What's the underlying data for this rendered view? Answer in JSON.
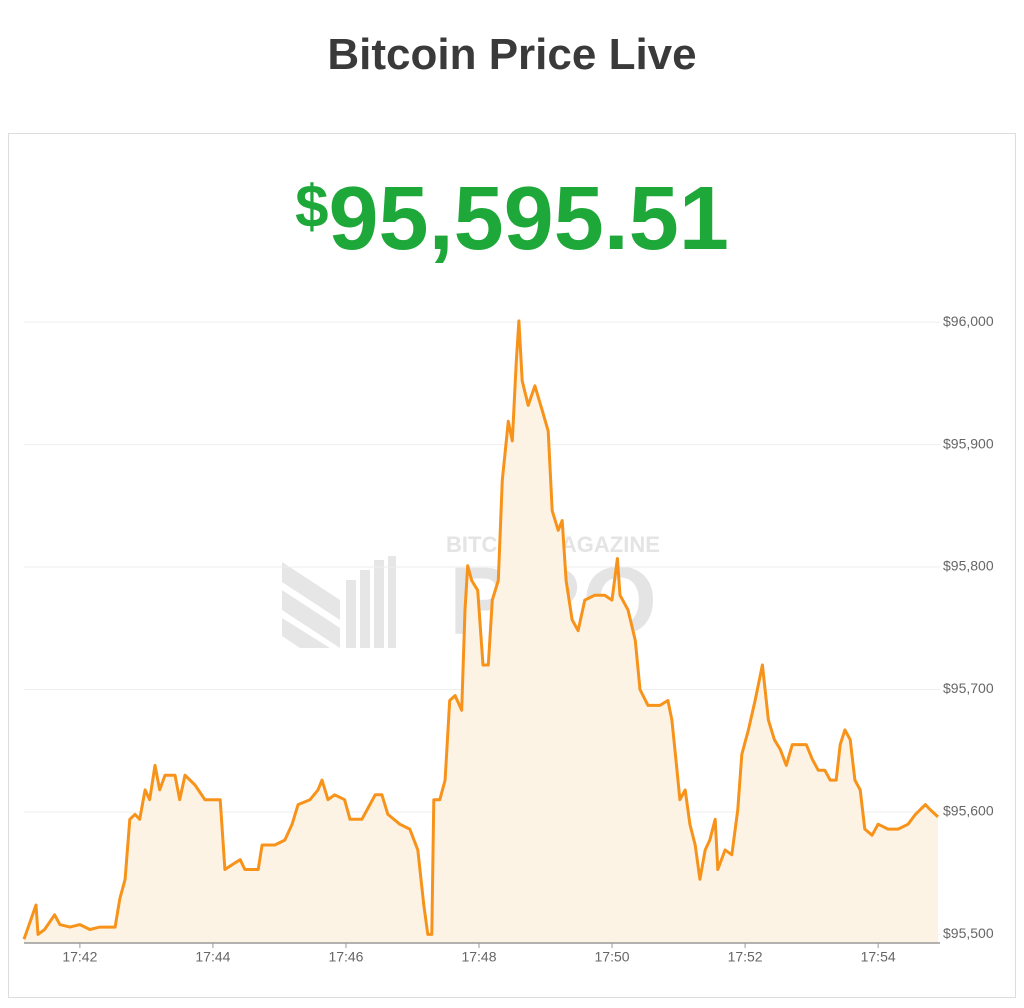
{
  "chart_data": {
    "type": "area",
    "title": "Bitcoin Price Live",
    "price": {
      "currency": "$",
      "amount": "95,595.51"
    },
    "watermark": [
      "BITCOIN MAGAZINE",
      "PRO"
    ],
    "color": "#f7931a",
    "fill": "#fdf3e4",
    "grid": true,
    "x": [
      1061.16,
      1061.34,
      1061.37,
      1061.47,
      1061.62,
      1061.7,
      1061.85,
      1062.0,
      1062.15,
      1062.3,
      1062.53,
      1062.6,
      1062.68,
      1062.75,
      1062.83,
      1062.9,
      1062.98,
      1063.05,
      1063.13,
      1063.2,
      1063.28,
      1063.43,
      1063.5,
      1063.58,
      1063.73,
      1063.88,
      1064.11,
      1064.18,
      1064.29,
      1064.41,
      1064.48,
      1064.68,
      1064.74,
      1064.93,
      1065.08,
      1065.19,
      1065.28,
      1065.46,
      1065.58,
      1065.64,
      1065.73,
      1065.83,
      1065.98,
      1066.06,
      1066.24,
      1066.36,
      1066.44,
      1066.54,
      1066.63,
      1066.81,
      1066.96,
      1067.08,
      1067.17,
      1067.23,
      1067.29,
      1067.32,
      1067.41,
      1067.49,
      1067.56,
      1067.64,
      1067.74,
      1067.79,
      1067.83,
      1067.89,
      1067.98,
      1068.06,
      1068.14,
      1068.2,
      1068.29,
      1068.35,
      1068.44,
      1068.5,
      1068.56,
      1068.6,
      1068.65,
      1068.74,
      1068.84,
      1068.95,
      1069.04,
      1069.1,
      1069.19,
      1069.25,
      1069.31,
      1069.4,
      1069.49,
      1069.59,
      1069.74,
      1069.89,
      1070.0,
      1070.08,
      1070.12,
      1070.24,
      1070.35,
      1070.42,
      1070.54,
      1070.72,
      1070.84,
      1070.9,
      1070.96,
      1071.02,
      1071.1,
      1071.17,
      1071.25,
      1071.32,
      1071.4,
      1071.47,
      1071.55,
      1071.59,
      1071.7,
      1071.8,
      1071.89,
      1071.95,
      1072.05,
      1072.15,
      1072.26,
      1072.35,
      1072.44,
      1072.53,
      1072.62,
      1072.71,
      1072.83,
      1072.92,
      1073.01,
      1073.1,
      1073.2,
      1073.28,
      1073.37,
      1073.43,
      1073.5,
      1073.58,
      1073.65,
      1073.73,
      1073.8,
      1073.91,
      1074.0,
      1074.15,
      1074.3,
      1074.45,
      1074.56,
      1074.71,
      1074.78,
      1074.9
    ],
    "values": [
      95496,
      95524,
      95500,
      95504,
      95516,
      95508,
      95506,
      95508,
      95504,
      95506,
      95506,
      95529,
      95545,
      95594,
      95598,
      95594,
      95618,
      95610,
      95638,
      95618,
      95630,
      95630,
      95610,
      95630,
      95622,
      95610,
      95610,
      95553,
      95557,
      95561,
      95553,
      95553,
      95573,
      95573,
      95577,
      95590,
      95606,
      95610,
      95618,
      95626,
      95610,
      95614,
      95610,
      95594,
      95594,
      95606,
      95614,
      95614,
      95598,
      95590,
      95586,
      95569,
      95524,
      95500,
      95500,
      95610,
      95610,
      95626,
      95691,
      95695,
      95683,
      95765,
      95801,
      95789,
      95781,
      95720,
      95720,
      95773,
      95789,
      95871,
      95919,
      95903,
      95968,
      96001,
      95952,
      95932,
      95948,
      95928,
      95911,
      95846,
      95830,
      95838,
      95789,
      95757,
      95748,
      95773,
      95777,
      95777,
      95773,
      95807,
      95777,
      95765,
      95740,
      95700,
      95687,
      95687,
      95691,
      95675,
      95643,
      95610,
      95618,
      95590,
      95573,
      95545,
      95569,
      95577,
      95594,
      95553,
      95569,
      95565,
      95602,
      95647,
      95667,
      95691,
      95720,
      95675,
      95659,
      95651,
      95638,
      95655,
      95655,
      95655,
      95643,
      95634,
      95634,
      95626,
      95626,
      95655,
      95667,
      95659,
      95626,
      95618,
      95586,
      95581,
      95590,
      95586,
      95586,
      95590,
      95598,
      95606,
      95602,
      95596
    ],
    "xlim": [
      1061.16,
      1074.93
    ],
    "xticks": [
      {
        "value": 1062,
        "label": "17:42"
      },
      {
        "value": 1064,
        "label": "17:44"
      },
      {
        "value": 1066,
        "label": "17:46"
      },
      {
        "value": 1068,
        "label": "17:48"
      },
      {
        "value": 1070,
        "label": "17:50"
      },
      {
        "value": 1072,
        "label": "17:52"
      },
      {
        "value": 1074,
        "label": "17:54"
      }
    ],
    "ylim": [
      95493,
      96005
    ],
    "yticks": [
      {
        "value": 95500,
        "label": "$95,500"
      },
      {
        "value": 95600,
        "label": "$95,600"
      },
      {
        "value": 95700,
        "label": "$95,700"
      },
      {
        "value": 95800,
        "label": "$95,800"
      },
      {
        "value": 95900,
        "label": "$95,900"
      },
      {
        "value": 96000,
        "label": "$96,000"
      }
    ]
  }
}
